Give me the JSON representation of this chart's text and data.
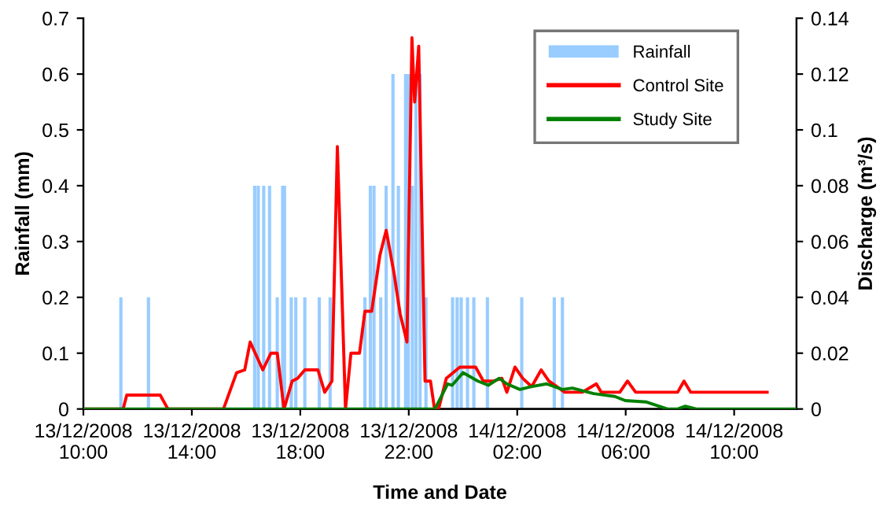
{
  "chart_data": {
    "type": "line",
    "xlabel": "Time and Date",
    "ylabel": "Rainfall (mm)",
    "y2label": "Discharge (m³/s)",
    "xlim": [
      "2008-12-13T10:00",
      "2008-12-14T12:18"
    ],
    "xticks": [
      {
        "value": "2008-12-13T10:00",
        "label": "13/12/2008\n10:00"
      },
      {
        "value": "2008-12-13T14:00",
        "label": "13/12/2008\n14:00"
      },
      {
        "value": "2008-12-13T18:00",
        "label": "13/12/2008\n18:00"
      },
      {
        "value": "2008-12-13T22:00",
        "label": "13/12/2008\n22:00"
      },
      {
        "value": "2008-12-14T02:00",
        "label": "14/12/2008\n02:00"
      },
      {
        "value": "2008-12-14T06:00",
        "label": "14/12/2008\n06:00"
      },
      {
        "value": "2008-12-14T10:00",
        "label": "14/12/2008\n10:00"
      }
    ],
    "ylim": [
      0,
      0.7
    ],
    "yticks": [
      0,
      0.1,
      0.2,
      0.3,
      0.4,
      0.5,
      0.6,
      0.7
    ],
    "y2lim": [
      0,
      0.14
    ],
    "y2ticks": [
      0,
      0.02,
      0.04,
      0.06,
      0.08,
      0.1,
      0.12,
      0.14
    ],
    "grid": false,
    "legend": "top right",
    "marker": "none",
    "line_style": "solid",
    "series": [
      {
        "name": "Rainfall",
        "type": "bar",
        "axis": "y",
        "color": "#99ccff",
        "x": [
          "2008-12-13T11:23",
          "2008-12-13T12:24",
          "2008-12-13T16:19",
          "2008-12-13T16:27",
          "2008-12-13T16:39",
          "2008-12-13T16:52",
          "2008-12-13T17:09",
          "2008-12-13T17:21",
          "2008-12-13T17:25",
          "2008-12-13T17:40",
          "2008-12-13T17:50",
          "2008-12-13T18:10",
          "2008-12-13T18:42",
          "2008-12-13T19:06",
          "2008-12-13T20:23",
          "2008-12-13T20:35",
          "2008-12-13T20:43",
          "2008-12-13T20:58",
          "2008-12-13T21:10",
          "2008-12-13T21:25",
          "2008-12-13T21:37",
          "2008-12-13T21:53",
          "2008-12-13T21:59",
          "2008-12-13T22:08",
          "2008-12-13T22:16",
          "2008-12-13T22:25",
          "2008-12-13T22:38",
          "2008-12-13T23:37",
          "2008-12-13T23:47",
          "2008-12-13T23:56",
          "2008-12-14T00:10",
          "2008-12-14T00:24",
          "2008-12-14T00:54",
          "2008-12-14T02:10",
          "2008-12-14T03:22",
          "2008-12-14T03:40"
        ],
        "values": [
          0.2,
          0.2,
          0.4,
          0.4,
          0.4,
          0.4,
          0.2,
          0.4,
          0.4,
          0.2,
          0.2,
          0.2,
          0.2,
          0.2,
          0.2,
          0.4,
          0.4,
          0.2,
          0.4,
          0.6,
          0.4,
          0.6,
          0.6,
          0.4,
          0.6,
          0.6,
          0.2,
          0.2,
          0.2,
          0.2,
          0.2,
          0.2,
          0.2,
          0.2,
          0.2,
          0.2
        ]
      },
      {
        "name": "Control Site",
        "axis": "y2",
        "color": "#ff0000",
        "x": [
          "2008-12-13T10:00",
          "2008-12-13T11:28",
          "2008-12-13T11:36",
          "2008-12-13T12:50",
          "2008-12-13T13:07",
          "2008-12-13T15:10",
          "2008-12-13T15:39",
          "2008-12-13T15:57",
          "2008-12-13T16:09",
          "2008-12-13T16:37",
          "2008-12-13T16:55",
          "2008-12-13T17:09",
          "2008-12-13T17:24",
          "2008-12-13T17:42",
          "2008-12-13T17:54",
          "2008-12-13T18:10",
          "2008-12-13T18:39",
          "2008-12-13T18:54",
          "2008-12-13T19:10",
          "2008-12-13T19:22",
          "2008-12-13T19:40",
          "2008-12-13T19:52",
          "2008-12-13T20:11",
          "2008-12-13T20:23",
          "2008-12-13T20:38",
          "2008-12-13T20:56",
          "2008-12-13T21:10",
          "2008-12-13T21:27",
          "2008-12-13T21:41",
          "2008-12-13T21:56",
          "2008-12-13T22:07",
          "2008-12-13T22:13",
          "2008-12-13T22:22",
          "2008-12-13T22:36",
          "2008-12-13T22:48",
          "2008-12-13T22:57",
          "2008-12-13T23:06",
          "2008-12-13T23:23",
          "2008-12-13T23:53",
          "2008-12-14T00:28",
          "2008-12-14T00:45",
          "2008-12-14T01:08",
          "2008-12-14T01:26",
          "2008-12-14T01:37",
          "2008-12-14T01:55",
          "2008-12-14T02:12",
          "2008-12-14T02:32",
          "2008-12-14T02:53",
          "2008-12-14T03:10",
          "2008-12-14T03:28",
          "2008-12-14T03:45",
          "2008-12-14T04:08",
          "2008-12-14T04:24",
          "2008-12-14T04:55",
          "2008-12-14T05:06",
          "2008-12-14T05:47",
          "2008-12-14T06:04",
          "2008-12-14T06:22",
          "2008-12-14T07:55",
          "2008-12-14T08:09",
          "2008-12-14T08:24",
          "2008-12-14T11:13"
        ],
        "values": [
          0,
          0,
          0.005,
          0.005,
          0,
          0,
          0.013,
          0.014,
          0.024,
          0.014,
          0.02,
          0.02,
          0,
          0.01,
          0.011,
          0.014,
          0.014,
          0.006,
          0.01,
          0.094,
          0,
          0.02,
          0.02,
          0.035,
          0.035,
          0.055,
          0.064,
          0.049,
          0.034,
          0.024,
          0.133,
          0.11,
          0.13,
          0.01,
          0.01,
          0,
          0,
          0.011,
          0.015,
          0.015,
          0.01,
          0.01,
          0.011,
          0.006,
          0.015,
          0.011,
          0.008,
          0.014,
          0.01,
          0.008,
          0.006,
          0.006,
          0.006,
          0.009,
          0.006,
          0.006,
          0.01,
          0.006,
          0.006,
          0.01,
          0.006,
          0.006
        ]
      },
      {
        "name": "Study Site",
        "axis": "y2",
        "color": "#008000",
        "x": [
          "2008-12-13T10:00",
          "2008-12-13T22:58",
          "2008-12-13T23:26",
          "2008-12-13T23:36",
          "2008-12-14T00:00",
          "2008-12-14T00:33",
          "2008-12-14T00:56",
          "2008-12-14T01:20",
          "2008-12-14T01:37",
          "2008-12-14T02:06",
          "2008-12-14T02:30",
          "2008-12-14T03:05",
          "2008-12-14T03:40",
          "2008-12-14T04:02",
          "2008-12-14T04:49",
          "2008-12-14T05:36",
          "2008-12-14T05:59",
          "2008-12-14T06:46",
          "2008-12-14T07:32",
          "2008-12-14T07:55",
          "2008-12-14T08:12",
          "2008-12-14T08:36",
          "2008-12-14T12:18"
        ],
        "values": [
          0,
          0,
          0.009,
          0.0085,
          0.013,
          0.01,
          0.0085,
          0.011,
          0.009,
          0.007,
          0.008,
          0.009,
          0.007,
          0.0075,
          0.0055,
          0.0045,
          0.003,
          0.0025,
          0,
          0,
          0.001,
          0,
          0
        ]
      }
    ]
  }
}
